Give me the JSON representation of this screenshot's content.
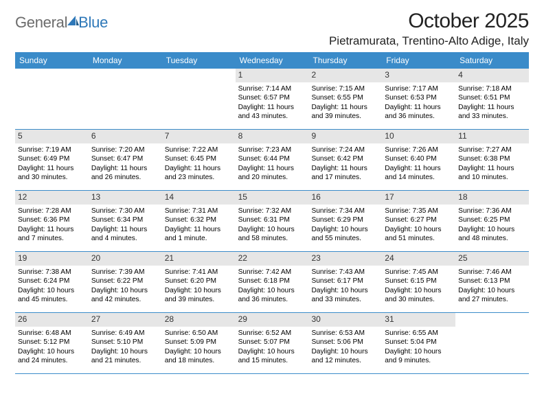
{
  "brand": {
    "name_gray": "General",
    "name_blue": "Blue"
  },
  "title": "October 2025",
  "location": "Pietramurata, Trentino-Alto Adige, Italy",
  "colors": {
    "header_bg": "#3a8bc9",
    "header_text": "#ffffff",
    "daynum_bg": "#e6e6e6",
    "row_border": "#3a8bc9",
    "text": "#000000",
    "logo_gray": "#6b6b6b",
    "logo_blue": "#2e78b8"
  },
  "typography": {
    "title_fontsize": 30,
    "location_fontsize": 17,
    "dow_fontsize": 12,
    "daynum_fontsize": 12,
    "body_fontsize": 10.2
  },
  "days_of_week": [
    "Sunday",
    "Monday",
    "Tuesday",
    "Wednesday",
    "Thursday",
    "Friday",
    "Saturday"
  ],
  "weeks": [
    [
      {
        "empty": true
      },
      {
        "empty": true
      },
      {
        "empty": true
      },
      {
        "num": "1",
        "sunrise": "Sunrise: 7:14 AM",
        "sunset": "Sunset: 6:57 PM",
        "daylight": "Daylight: 11 hours and 43 minutes."
      },
      {
        "num": "2",
        "sunrise": "Sunrise: 7:15 AM",
        "sunset": "Sunset: 6:55 PM",
        "daylight": "Daylight: 11 hours and 39 minutes."
      },
      {
        "num": "3",
        "sunrise": "Sunrise: 7:17 AM",
        "sunset": "Sunset: 6:53 PM",
        "daylight": "Daylight: 11 hours and 36 minutes."
      },
      {
        "num": "4",
        "sunrise": "Sunrise: 7:18 AM",
        "sunset": "Sunset: 6:51 PM",
        "daylight": "Daylight: 11 hours and 33 minutes."
      }
    ],
    [
      {
        "num": "5",
        "sunrise": "Sunrise: 7:19 AM",
        "sunset": "Sunset: 6:49 PM",
        "daylight": "Daylight: 11 hours and 30 minutes."
      },
      {
        "num": "6",
        "sunrise": "Sunrise: 7:20 AM",
        "sunset": "Sunset: 6:47 PM",
        "daylight": "Daylight: 11 hours and 26 minutes."
      },
      {
        "num": "7",
        "sunrise": "Sunrise: 7:22 AM",
        "sunset": "Sunset: 6:45 PM",
        "daylight": "Daylight: 11 hours and 23 minutes."
      },
      {
        "num": "8",
        "sunrise": "Sunrise: 7:23 AM",
        "sunset": "Sunset: 6:44 PM",
        "daylight": "Daylight: 11 hours and 20 minutes."
      },
      {
        "num": "9",
        "sunrise": "Sunrise: 7:24 AM",
        "sunset": "Sunset: 6:42 PM",
        "daylight": "Daylight: 11 hours and 17 minutes."
      },
      {
        "num": "10",
        "sunrise": "Sunrise: 7:26 AM",
        "sunset": "Sunset: 6:40 PM",
        "daylight": "Daylight: 11 hours and 14 minutes."
      },
      {
        "num": "11",
        "sunrise": "Sunrise: 7:27 AM",
        "sunset": "Sunset: 6:38 PM",
        "daylight": "Daylight: 11 hours and 10 minutes."
      }
    ],
    [
      {
        "num": "12",
        "sunrise": "Sunrise: 7:28 AM",
        "sunset": "Sunset: 6:36 PM",
        "daylight": "Daylight: 11 hours and 7 minutes."
      },
      {
        "num": "13",
        "sunrise": "Sunrise: 7:30 AM",
        "sunset": "Sunset: 6:34 PM",
        "daylight": "Daylight: 11 hours and 4 minutes."
      },
      {
        "num": "14",
        "sunrise": "Sunrise: 7:31 AM",
        "sunset": "Sunset: 6:32 PM",
        "daylight": "Daylight: 11 hours and 1 minute."
      },
      {
        "num": "15",
        "sunrise": "Sunrise: 7:32 AM",
        "sunset": "Sunset: 6:31 PM",
        "daylight": "Daylight: 10 hours and 58 minutes."
      },
      {
        "num": "16",
        "sunrise": "Sunrise: 7:34 AM",
        "sunset": "Sunset: 6:29 PM",
        "daylight": "Daylight: 10 hours and 55 minutes."
      },
      {
        "num": "17",
        "sunrise": "Sunrise: 7:35 AM",
        "sunset": "Sunset: 6:27 PM",
        "daylight": "Daylight: 10 hours and 51 minutes."
      },
      {
        "num": "18",
        "sunrise": "Sunrise: 7:36 AM",
        "sunset": "Sunset: 6:25 PM",
        "daylight": "Daylight: 10 hours and 48 minutes."
      }
    ],
    [
      {
        "num": "19",
        "sunrise": "Sunrise: 7:38 AM",
        "sunset": "Sunset: 6:24 PM",
        "daylight": "Daylight: 10 hours and 45 minutes."
      },
      {
        "num": "20",
        "sunrise": "Sunrise: 7:39 AM",
        "sunset": "Sunset: 6:22 PM",
        "daylight": "Daylight: 10 hours and 42 minutes."
      },
      {
        "num": "21",
        "sunrise": "Sunrise: 7:41 AM",
        "sunset": "Sunset: 6:20 PM",
        "daylight": "Daylight: 10 hours and 39 minutes."
      },
      {
        "num": "22",
        "sunrise": "Sunrise: 7:42 AM",
        "sunset": "Sunset: 6:18 PM",
        "daylight": "Daylight: 10 hours and 36 minutes."
      },
      {
        "num": "23",
        "sunrise": "Sunrise: 7:43 AM",
        "sunset": "Sunset: 6:17 PM",
        "daylight": "Daylight: 10 hours and 33 minutes."
      },
      {
        "num": "24",
        "sunrise": "Sunrise: 7:45 AM",
        "sunset": "Sunset: 6:15 PM",
        "daylight": "Daylight: 10 hours and 30 minutes."
      },
      {
        "num": "25",
        "sunrise": "Sunrise: 7:46 AM",
        "sunset": "Sunset: 6:13 PM",
        "daylight": "Daylight: 10 hours and 27 minutes."
      }
    ],
    [
      {
        "num": "26",
        "sunrise": "Sunrise: 6:48 AM",
        "sunset": "Sunset: 5:12 PM",
        "daylight": "Daylight: 10 hours and 24 minutes."
      },
      {
        "num": "27",
        "sunrise": "Sunrise: 6:49 AM",
        "sunset": "Sunset: 5:10 PM",
        "daylight": "Daylight: 10 hours and 21 minutes."
      },
      {
        "num": "28",
        "sunrise": "Sunrise: 6:50 AM",
        "sunset": "Sunset: 5:09 PM",
        "daylight": "Daylight: 10 hours and 18 minutes."
      },
      {
        "num": "29",
        "sunrise": "Sunrise: 6:52 AM",
        "sunset": "Sunset: 5:07 PM",
        "daylight": "Daylight: 10 hours and 15 minutes."
      },
      {
        "num": "30",
        "sunrise": "Sunrise: 6:53 AM",
        "sunset": "Sunset: 5:06 PM",
        "daylight": "Daylight: 10 hours and 12 minutes."
      },
      {
        "num": "31",
        "sunrise": "Sunrise: 6:55 AM",
        "sunset": "Sunset: 5:04 PM",
        "daylight": "Daylight: 10 hours and 9 minutes."
      },
      {
        "empty": true
      }
    ]
  ]
}
